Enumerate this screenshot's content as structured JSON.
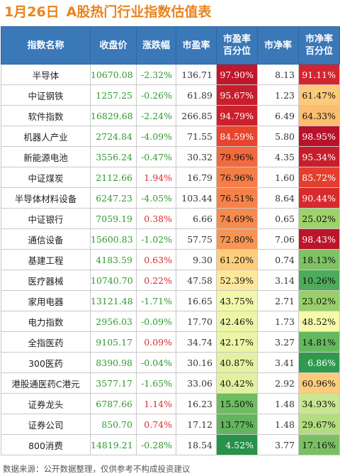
{
  "title": {
    "date": "1月26日",
    "text": "A股热门行业指数估值表"
  },
  "columns": [
    "指数名称",
    "收盘价",
    "涨跌幅",
    "市盈率",
    "市盈率\n百分位",
    "市净率",
    "市净率\n百分位"
  ],
  "rows": [
    {
      "name": "半导体",
      "close": "10670.08",
      "change": "-2.32%",
      "pe": "136.71",
      "pe_pct": "97.90%",
      "pb": "8.13",
      "pb_pct": "91.11%",
      "pe_color": "#c0172a",
      "pb_color": "#d4242e"
    },
    {
      "name": "中证钢铁",
      "close": "1257.25",
      "change": "-0.26%",
      "pe": "61.89",
      "pe_pct": "95.67%",
      "pb": "1.23",
      "pb_pct": "61.47%",
      "pe_color": "#c81e2b",
      "pb_color": "#fbca7a"
    },
    {
      "name": "软件指数",
      "close": "16829.68",
      "change": "-2.24%",
      "pe": "266.85",
      "pe_pct": "94.79%",
      "pb": "6.49",
      "pb_pct": "64.33%",
      "pe_color": "#cc212c",
      "pb_color": "#f9be6e"
    },
    {
      "name": "机器人产业",
      "close": "2724.84",
      "change": "-4.09%",
      "pe": "71.55",
      "pe_pct": "84.59%",
      "pb": "5.80",
      "pb_pct": "98.95%",
      "pe_color": "#e8452f",
      "pb_color": "#b8132a"
    },
    {
      "name": "新能源电池",
      "close": "3556.24",
      "change": "-0.47%",
      "pe": "30.32",
      "pe_pct": "79.96%",
      "pb": "4.35",
      "pb_pct": "95.34%",
      "pe_color": "#f26a3e",
      "pb_color": "#c81e2b"
    },
    {
      "name": "中证煤炭",
      "close": "2112.66",
      "change": "1.94%",
      "pe": "16.79",
      "pe_pct": "76.96%",
      "pb": "1.60",
      "pb_pct": "85.72%",
      "pe_color": "#f57e47",
      "pb_color": "#e43f2e"
    },
    {
      "name": "半导体材料设备",
      "close": "6247.23",
      "change": "-4.05%",
      "pe": "103.44",
      "pe_pct": "76.51%",
      "pb": "8.64",
      "pb_pct": "90.44%",
      "pe_color": "#f6824a",
      "pb_color": "#d82a2d"
    },
    {
      "name": "中证银行",
      "close": "7059.19",
      "change": "0.38%",
      "pe": "6.66",
      "pe_pct": "74.69%",
      "pb": "0.65",
      "pb_pct": "25.02%",
      "pe_color": "#f78b4e",
      "pb_color": "#9fd36a"
    },
    {
      "name": "通信设备",
      "close": "15600.83",
      "change": "-1.02%",
      "pe": "57.75",
      "pe_pct": "72.80%",
      "pb": "7.06",
      "pb_pct": "98.43%",
      "pe_color": "#f99554",
      "pb_color": "#bb152a"
    },
    {
      "name": "基建工程",
      "close": "4183.59",
      "change": "0.63%",
      "pe": "9.30",
      "pe_pct": "61.20%",
      "pb": "0.74",
      "pb_pct": "18.13%",
      "pe_color": "#fdcd7c",
      "pb_color": "#7fc263"
    },
    {
      "name": "医疗器械",
      "close": "10740.70",
      "change": "0.22%",
      "pe": "47.58",
      "pe_pct": "52.39%",
      "pb": "3.14",
      "pb_pct": "10.26%",
      "pe_color": "#fde89a",
      "pb_color": "#4eab5a"
    },
    {
      "name": "家用电器",
      "close": "13121.48",
      "change": "-1.71%",
      "pe": "16.65",
      "pe_pct": "43.75%",
      "pb": "2.71",
      "pb_pct": "23.02%",
      "pe_color": "#f1f8a8",
      "pb_color": "#98cf69"
    },
    {
      "name": "电力指数",
      "close": "2956.03",
      "change": "-0.09%",
      "pe": "17.70",
      "pe_pct": "42.46%",
      "pb": "1.73",
      "pb_pct": "48.52%",
      "pe_color": "#ecf6a6",
      "pb_color": "#f6faa9"
    },
    {
      "name": "全指医药",
      "close": "9105.17",
      "change": "0.09%",
      "pe": "34.74",
      "pe_pct": "42.17%",
      "pb": "3.27",
      "pb_pct": "14.81%",
      "pe_color": "#ebf5a5",
      "pb_color": "#66b85e"
    },
    {
      "name": "300医药",
      "close": "8390.98",
      "change": "-0.04%",
      "pe": "30.16",
      "pe_pct": "40.87%",
      "pb": "3.41",
      "pb_pct": "6.86%",
      "pe_color": "#e4f2a0",
      "pb_color": "#2f9a4e"
    },
    {
      "name": "港股通医药C港元",
      "close": "3577.17",
      "change": "-1.65%",
      "pe": "33.06",
      "pe_pct": "40.42%",
      "pb": "2.92",
      "pb_pct": "60.96%",
      "pe_color": "#e2f19f",
      "pb_color": "#fccb7c"
    },
    {
      "name": "证券龙头",
      "close": "6787.66",
      "change": "1.14%",
      "pe": "16.23",
      "pe_pct": "15.50%",
      "pb": "1.48",
      "pb_pct": "34.93%",
      "pe_color": "#6fbc61",
      "pb_color": "#c9e791"
    },
    {
      "name": "证券公司",
      "close": "850.70",
      "change": "0.74%",
      "pe": "17.12",
      "pe_pct": "13.77%",
      "pb": "1.48",
      "pb_pct": "29.67%",
      "pe_color": "#62b55d",
      "pb_color": "#b4dd80"
    },
    {
      "name": "800消费",
      "close": "14819.21",
      "change": "-0.28%",
      "pe": "18.54",
      "pe_pct": "4.52%",
      "pb": "3.77",
      "pb_pct": "17.16%",
      "pe_color": "#27924a",
      "pb_color": "#7ac062"
    }
  ],
  "footer": "数据来源：公开数据整理，仅供参考不构成投资建议"
}
